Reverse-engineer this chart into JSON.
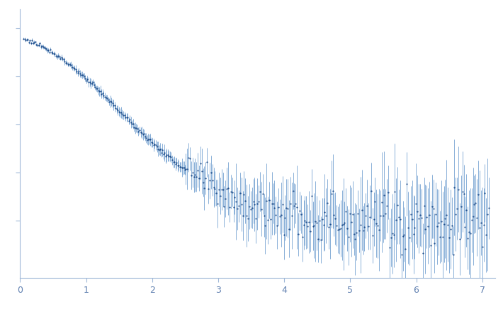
{
  "xlim": [
    0,
    7.2
  ],
  "ylim": [
    -0.06,
    0.22
  ],
  "xticks": [
    0,
    1,
    2,
    3,
    4,
    5,
    6,
    7
  ],
  "yticks": [
    0.0,
    0.05,
    0.1,
    0.15,
    0.2
  ],
  "background_color": "#ffffff",
  "error_color": "#8ab0d8",
  "dot_color": "#1f4e8c",
  "dot_size": 2.5,
  "error_lw": 0.7,
  "axis_color": "#a0b8d8",
  "tick_label_color": "#6080b0",
  "tick_label_size": 9,
  "seed": 77
}
